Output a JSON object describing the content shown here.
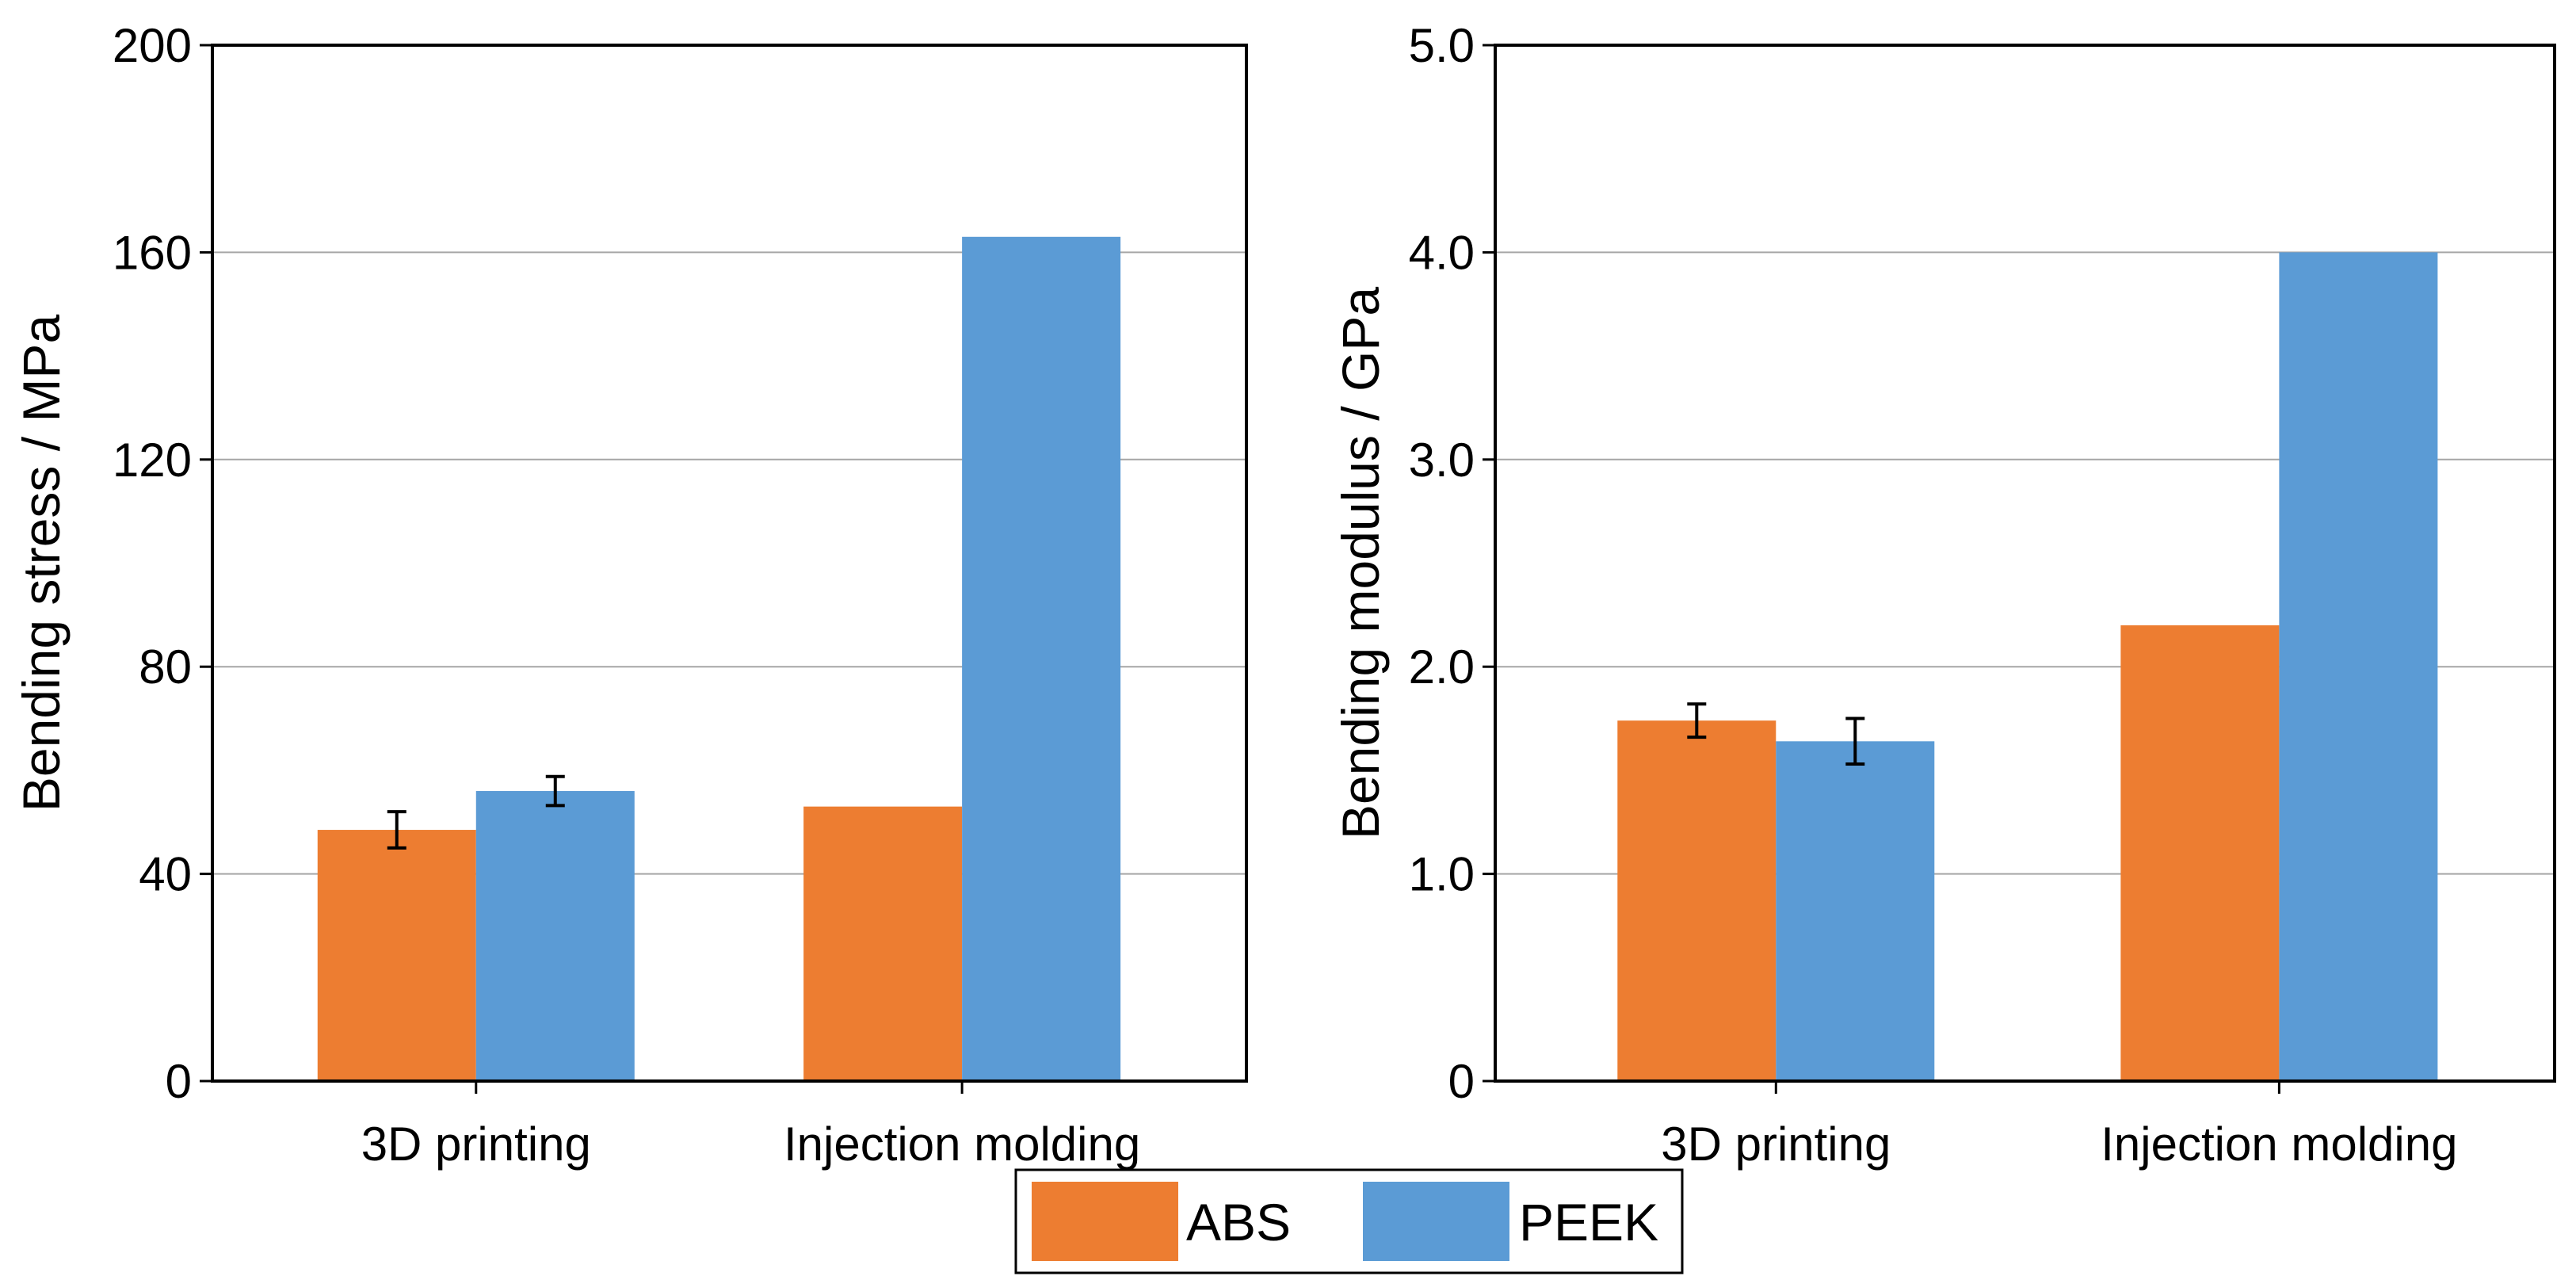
{
  "colors": {
    "abs": "#ED7D31",
    "peek": "#5B9BD5",
    "grid": "#A6A6A6",
    "axis": "#000000"
  },
  "legend": {
    "items": [
      {
        "key": "abs",
        "label": "ABS"
      },
      {
        "key": "peek",
        "label": "PEEK"
      }
    ]
  },
  "chart_data": [
    {
      "type": "bar",
      "title": "",
      "xlabel": "",
      "ylabel": "Bending stress / MPa",
      "ylim": [
        0,
        200
      ],
      "yticks": [
        0,
        40,
        80,
        120,
        160,
        200
      ],
      "ytick_labels": [
        "0",
        "40",
        "80",
        "120",
        "160",
        "200"
      ],
      "categories": [
        "3D printing",
        "Injection molding"
      ],
      "grid": true,
      "series": [
        {
          "name": "ABS",
          "key": "abs",
          "values": [
            48.5,
            53
          ],
          "errors": [
            3.5,
            null
          ]
        },
        {
          "name": "PEEK",
          "key": "peek",
          "values": [
            56,
            163
          ],
          "errors": [
            2.8,
            null
          ]
        }
      ]
    },
    {
      "type": "bar",
      "title": "",
      "xlabel": "",
      "ylabel": "Bending modulus / GPa",
      "ylim": [
        0,
        5
      ],
      "yticks": [
        0,
        1,
        2,
        3,
        4,
        5
      ],
      "ytick_labels": [
        "0",
        "1.0",
        "2.0",
        "3.0",
        "4.0",
        "5.0"
      ],
      "categories": [
        "3D printing",
        "Injection molding"
      ],
      "grid": true,
      "series": [
        {
          "name": "ABS",
          "key": "abs",
          "values": [
            1.74,
            2.2
          ],
          "errors": [
            0.08,
            null
          ]
        },
        {
          "name": "PEEK",
          "key": "peek",
          "values": [
            1.64,
            4.0
          ],
          "errors": [
            0.11,
            null
          ]
        }
      ]
    }
  ]
}
